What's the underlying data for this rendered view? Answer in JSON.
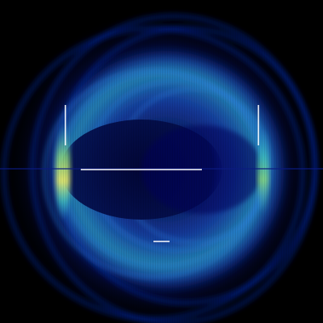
{
  "image": {
    "subject": "ring-pattern",
    "colors": {
      "background": "#000000",
      "outer_glow": "#0a1c8c",
      "ring_deep": "#061a9e",
      "ring_mid": "#1f56d6",
      "ring_bright": "#2fb0d8",
      "rim_cyan": "#46d2be",
      "rim_green": "#8ee07c",
      "rim_yellow": "#e8ea6a",
      "inner_dark": "#020636",
      "marker_line": "#ffffff"
    }
  }
}
